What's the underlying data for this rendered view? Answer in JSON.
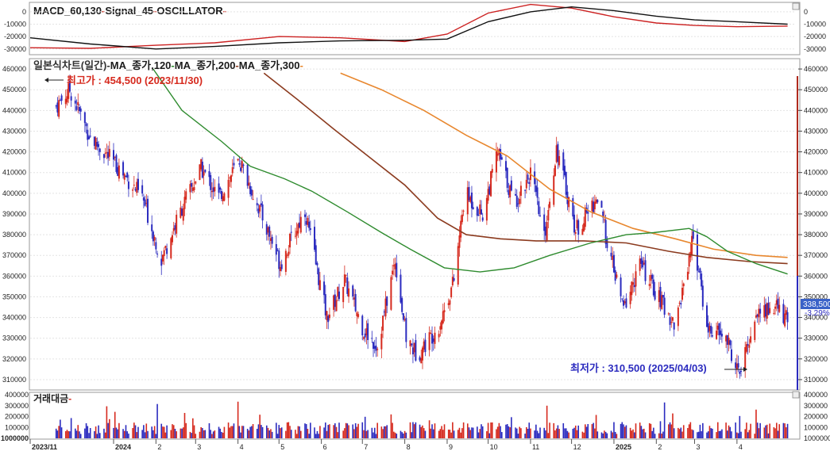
{
  "macd_panel": {
    "legend": [
      {
        "text": "MACD_60,130",
        "color": "#1a1a1a"
      },
      {
        "text": "-",
        "color": "#cc2a1e"
      },
      {
        "text": "Signal_45",
        "color": "#1a1a1a"
      },
      {
        "text": "-",
        "color": "#cc2a1e"
      },
      {
        "text": "OSCILLATOR",
        "color": "#1a1a1a"
      },
      {
        "text": "-",
        "color": "#cc2a1e"
      }
    ],
    "left_ticks": [
      "0",
      "-10000",
      "-20000",
      "-30000"
    ],
    "right_ticks": [
      "0",
      "-10000",
      "-20000",
      "-30000"
    ]
  },
  "price_panel": {
    "legend": [
      {
        "text": "일본식차트(일간)",
        "color": "#333333"
      },
      {
        "text": "-",
        "color": "#333333"
      },
      {
        "text": "MA_종가,120",
        "color": "#1a1a1a"
      },
      {
        "text": "-",
        "color": "#2e8b2e"
      },
      {
        "text": "MA_종가,200",
        "color": "#1a1a1a"
      },
      {
        "text": "-",
        "color": "#8b3a1e"
      },
      {
        "text": "MA_종가,300",
        "color": "#1a1a1a"
      },
      {
        "text": "-",
        "color": "#e8872e"
      }
    ],
    "high_note": "최고가 : 454,500 (2023/11/30)",
    "low_note": "최저가 : 310,500 (2025/04/03)",
    "last_price": "338,500",
    "change_pct": "-3.29%"
  },
  "volume_panel": {
    "legend": "거래대금",
    "left_ticks": [
      "400000",
      "300000",
      "200000",
      "100000",
      "1000000"
    ],
    "right_ticks": [
      "400000",
      "300000",
      "200000",
      "100000",
      "1000000"
    ]
  },
  "x_axis": {
    "labels": [
      "2023/11",
      "2024",
      "2",
      "3",
      "4",
      "5",
      "6",
      "7",
      "8",
      "9",
      "10",
      "11",
      "12",
      "2025",
      "2",
      "3",
      "4"
    ]
  },
  "colors": {
    "up": "#d62a1e",
    "down": "#2b2bbf",
    "ma120": "#2e8b2e",
    "ma200": "#8b3a1e",
    "ma300": "#e8872e",
    "macd": "#111111",
    "signal": "#cc2222",
    "grid": "#e4e4e4"
  },
  "chart_data": {
    "type": "candlestick",
    "price_axis": {
      "ticks": [
        "460000",
        "450000",
        "440000",
        "430000",
        "420000",
        "410000",
        "400000",
        "390000",
        "380000",
        "370000",
        "360000",
        "350000",
        "340000",
        "330000",
        "320000",
        "310000"
      ],
      "range": [
        305000,
        465000
      ]
    },
    "close_anchors": [
      {
        "date": "2023-11-20",
        "close": 442000
      },
      {
        "date": "2023-11-30",
        "close": 450000
      },
      {
        "date": "2023-12-15",
        "close": 427000
      },
      {
        "date": "2024-01-05",
        "close": 412000
      },
      {
        "date": "2024-01-22",
        "close": 398000
      },
      {
        "date": "2024-02-05",
        "close": 368000
      },
      {
        "date": "2024-02-20",
        "close": 393000
      },
      {
        "date": "2024-03-05",
        "close": 412000
      },
      {
        "date": "2024-03-18",
        "close": 398000
      },
      {
        "date": "2024-04-02",
        "close": 416000
      },
      {
        "date": "2024-04-18",
        "close": 390000
      },
      {
        "date": "2024-05-02",
        "close": 366000
      },
      {
        "date": "2024-05-20",
        "close": 392000
      },
      {
        "date": "2024-06-05",
        "close": 340000
      },
      {
        "date": "2024-06-18",
        "close": 358000
      },
      {
        "date": "2024-07-02",
        "close": 334000
      },
      {
        "date": "2024-07-12",
        "close": 326000
      },
      {
        "date": "2024-07-25",
        "close": 368000
      },
      {
        "date": "2024-08-02",
        "close": 330000
      },
      {
        "date": "2024-08-10",
        "close": 322000
      },
      {
        "date": "2024-08-26",
        "close": 336000
      },
      {
        "date": "2024-09-06",
        "close": 358000
      },
      {
        "date": "2024-09-14",
        "close": 400000
      },
      {
        "date": "2024-09-27",
        "close": 390000
      },
      {
        "date": "2024-10-08",
        "close": 420000
      },
      {
        "date": "2024-10-20",
        "close": 395000
      },
      {
        "date": "2024-11-01",
        "close": 410000
      },
      {
        "date": "2024-11-11",
        "close": 378000
      },
      {
        "date": "2024-11-20",
        "close": 422000
      },
      {
        "date": "2024-12-04",
        "close": 382000
      },
      {
        "date": "2024-12-20",
        "close": 398000
      },
      {
        "date": "2024-12-30",
        "close": 368000
      },
      {
        "date": "2025-01-08",
        "close": 344000
      },
      {
        "date": "2025-01-20",
        "close": 366000
      },
      {
        "date": "2025-02-04",
        "close": 348000
      },
      {
        "date": "2025-02-15",
        "close": 336000
      },
      {
        "date": "2025-02-28",
        "close": 380000
      },
      {
        "date": "2025-03-10",
        "close": 335000
      },
      {
        "date": "2025-03-24",
        "close": 330000
      },
      {
        "date": "2025-04-03",
        "close": 312000
      },
      {
        "date": "2025-04-15",
        "close": 342000
      },
      {
        "date": "2025-04-30",
        "close": 345000
      },
      {
        "date": "2025-05-08",
        "close": 338500
      }
    ],
    "moving_averages": [
      {
        "name": "MA_종가,120",
        "points": [
          {
            "date": "2024-01-30",
            "value": 460000
          },
          {
            "date": "2024-02-20",
            "value": 440000
          },
          {
            "date": "2024-03-20",
            "value": 425000
          },
          {
            "date": "2024-04-10",
            "value": 413000
          },
          {
            "date": "2024-05-05",
            "value": 407000
          },
          {
            "date": "2024-05-25",
            "value": 401000
          },
          {
            "date": "2024-06-20",
            "value": 391000
          },
          {
            "date": "2024-07-15",
            "value": 381000
          },
          {
            "date": "2024-08-05",
            "value": 373000
          },
          {
            "date": "2024-08-30",
            "value": 364000
          },
          {
            "date": "2024-09-25",
            "value": 362000
          },
          {
            "date": "2024-10-20",
            "value": 364000
          },
          {
            "date": "2024-11-15",
            "value": 370000
          },
          {
            "date": "2024-12-15",
            "value": 376000
          },
          {
            "date": "2025-01-10",
            "value": 380000
          },
          {
            "date": "2025-01-30",
            "value": 381000
          },
          {
            "date": "2025-02-25",
            "value": 383000
          },
          {
            "date": "2025-03-10",
            "value": 379000
          },
          {
            "date": "2025-03-25",
            "value": 372000
          },
          {
            "date": "2025-04-15",
            "value": 366000
          },
          {
            "date": "2025-05-08",
            "value": 361000
          }
        ]
      },
      {
        "name": "MA_종가,200",
        "points": [
          {
            "date": "2024-04-20",
            "value": 458000
          },
          {
            "date": "2024-05-15",
            "value": 445000
          },
          {
            "date": "2024-06-10",
            "value": 431000
          },
          {
            "date": "2024-07-05",
            "value": 418000
          },
          {
            "date": "2024-08-01",
            "value": 404000
          },
          {
            "date": "2024-08-25",
            "value": 388000
          },
          {
            "date": "2024-09-15",
            "value": 380000
          },
          {
            "date": "2024-10-10",
            "value": 378000
          },
          {
            "date": "2024-11-05",
            "value": 377000
          },
          {
            "date": "2024-12-10",
            "value": 377000
          },
          {
            "date": "2025-01-10",
            "value": 376000
          },
          {
            "date": "2025-02-10",
            "value": 372000
          },
          {
            "date": "2025-03-10",
            "value": 369000
          },
          {
            "date": "2025-04-10",
            "value": 367000
          },
          {
            "date": "2025-05-08",
            "value": 366000
          }
        ]
      },
      {
        "name": "MA_종가,300",
        "points": [
          {
            "date": "2024-06-15",
            "value": 458000
          },
          {
            "date": "2024-07-15",
            "value": 450000
          },
          {
            "date": "2024-08-15",
            "value": 440000
          },
          {
            "date": "2024-09-15",
            "value": 428000
          },
          {
            "date": "2024-10-15",
            "value": 418000
          },
          {
            "date": "2024-11-15",
            "value": 402000
          },
          {
            "date": "2024-12-15",
            "value": 391000
          },
          {
            "date": "2025-01-15",
            "value": 383000
          },
          {
            "date": "2025-02-15",
            "value": 378000
          },
          {
            "date": "2025-03-15",
            "value": 373000
          },
          {
            "date": "2025-04-15",
            "value": 370000
          },
          {
            "date": "2025-05-08",
            "value": 369000
          }
        ]
      }
    ],
    "macd": {
      "range": [
        -34000,
        7000
      ],
      "macd_line": [
        {
          "date": "2023-11-01",
          "value": -21000
        },
        {
          "date": "2023-12-15",
          "value": -26000
        },
        {
          "date": "2024-02-01",
          "value": -30000
        },
        {
          "date": "2024-03-15",
          "value": -28000
        },
        {
          "date": "2024-05-01",
          "value": -25000
        },
        {
          "date": "2024-06-15",
          "value": -23500
        },
        {
          "date": "2024-08-01",
          "value": -23000
        },
        {
          "date": "2024-09-01",
          "value": -22000
        },
        {
          "date": "2024-10-01",
          "value": -8000
        },
        {
          "date": "2024-11-01",
          "value": 0
        },
        {
          "date": "2024-12-01",
          "value": 4000
        },
        {
          "date": "2025-01-01",
          "value": 1000
        },
        {
          "date": "2025-02-01",
          "value": -3500
        },
        {
          "date": "2025-03-01",
          "value": -6500
        },
        {
          "date": "2025-04-01",
          "value": -8000
        },
        {
          "date": "2025-05-08",
          "value": -10000
        }
      ],
      "signal_line": [
        {
          "date": "2023-11-01",
          "value": -29000
        },
        {
          "date": "2023-12-15",
          "value": -29500
        },
        {
          "date": "2024-02-01",
          "value": -27000
        },
        {
          "date": "2024-03-15",
          "value": -25000
        },
        {
          "date": "2024-05-01",
          "value": -20000
        },
        {
          "date": "2024-06-15",
          "value": -21000
        },
        {
          "date": "2024-08-01",
          "value": -24000
        },
        {
          "date": "2024-09-01",
          "value": -18000
        },
        {
          "date": "2024-10-01",
          "value": -1000
        },
        {
          "date": "2024-11-01",
          "value": 6000
        },
        {
          "date": "2024-12-01",
          "value": 3000
        },
        {
          "date": "2025-01-01",
          "value": -4000
        },
        {
          "date": "2025-02-01",
          "value": -9000
        },
        {
          "date": "2025-03-01",
          "value": -11000
        },
        {
          "date": "2025-04-01",
          "value": -12000
        },
        {
          "date": "2025-05-08",
          "value": -11500
        }
      ]
    },
    "volume": {
      "axis_max": 400000,
      "note": "daily bars; peaks near 400000 around 2024-11 and 2025-04"
    },
    "grid": true
  }
}
